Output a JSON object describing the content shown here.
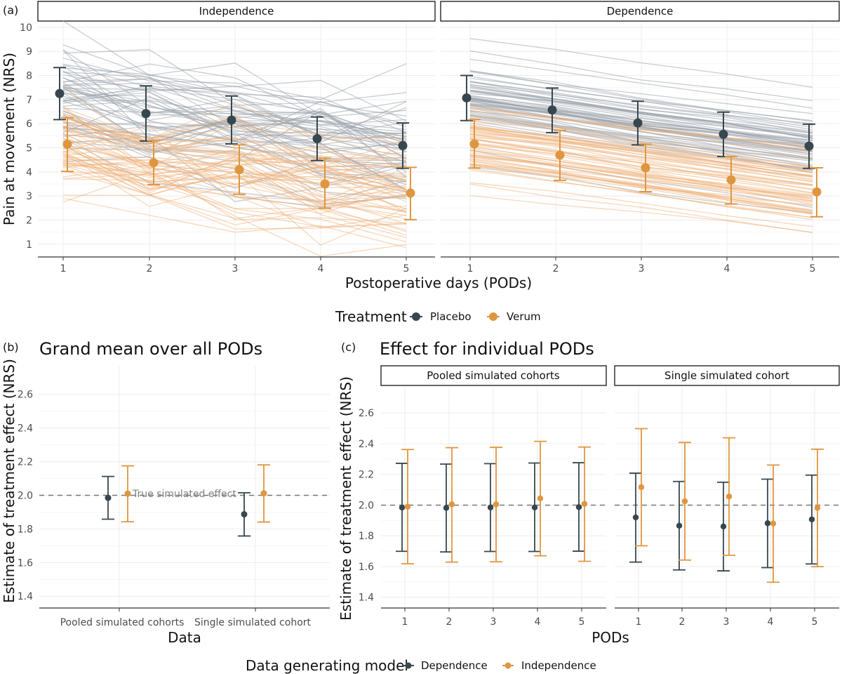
{
  "chart_data": [
    {
      "id": "a",
      "tag": "(a)",
      "type": "line",
      "xlabel": "Postoperative days (PODs)",
      "ylabel": "Pain at movement (NRS)",
      "x": [
        1,
        2,
        3,
        4,
        5
      ],
      "ylim": [
        0.5,
        10.2
      ],
      "yticks": [
        1,
        2,
        3,
        4,
        5,
        6,
        7,
        8,
        9,
        10
      ],
      "grid": true,
      "legend": {
        "title": "Treatment",
        "position": "bottom",
        "entries": [
          {
            "label": "Placebo",
            "color": "#37474f"
          },
          {
            "label": "Verum",
            "color": "#e0963f"
          }
        ]
      },
      "facets": [
        {
          "label": "Independence",
          "individual_lines": "many simulated subject trajectories with independent day-to-day noise",
          "series": [
            {
              "name": "Placebo",
              "color": "#37474f",
              "mean": [
                7.25,
                6.42,
                6.15,
                5.38,
                5.09
              ],
              "lower": [
                6.17,
                5.28,
                5.16,
                4.47,
                4.15
              ],
              "upper": [
                8.33,
                7.57,
                7.15,
                6.28,
                6.03
              ]
            },
            {
              "name": "Verum",
              "color": "#e0963f",
              "mean": [
                5.15,
                4.38,
                4.09,
                3.5,
                3.12
              ],
              "lower": [
                4.02,
                3.47,
                3.07,
                2.49,
                2.02
              ],
              "upper": [
                6.25,
                5.3,
                5.12,
                4.57,
                4.19
              ]
            }
          ]
        },
        {
          "label": "Dependence",
          "individual_lines": "many simulated subject trajectories declining almost linearly",
          "series": [
            {
              "name": "Placebo",
              "color": "#37474f",
              "mean": [
                7.07,
                6.57,
                6.03,
                5.56,
                5.07
              ],
              "lower": [
                6.13,
                5.63,
                5.12,
                4.64,
                4.15
              ],
              "upper": [
                8.0,
                7.48,
                6.93,
                6.48,
                5.98
              ]
            },
            {
              "name": "Verum",
              "color": "#e0963f",
              "mean": [
                5.16,
                4.7,
                4.17,
                3.67,
                3.17
              ],
              "lower": [
                4.16,
                3.65,
                3.18,
                2.67,
                2.14
              ],
              "upper": [
                6.17,
                5.72,
                5.15,
                4.64,
                4.17
              ]
            }
          ]
        }
      ]
    },
    {
      "id": "b",
      "tag": "(b)",
      "type": "scatter",
      "title": "Grand mean over all PODs",
      "xlabel": "Data",
      "ylabel": "Estimate of treatment effect (NRS)",
      "categories": [
        "Pooled simulated cohorts",
        "Single simulated cohort"
      ],
      "ylim": [
        1.33,
        2.77
      ],
      "yticks": [
        1.4,
        1.6,
        1.8,
        2.0,
        2.2,
        2.4,
        2.6
      ],
      "reference_line": {
        "y": 2.0,
        "label": "True simulated effect"
      },
      "series": [
        {
          "name": "Dependence",
          "color": "#37474f",
          "values": [
            1.985,
            1.887
          ],
          "lower": [
            1.858,
            1.758
          ],
          "upper": [
            2.112,
            2.015
          ]
        },
        {
          "name": "Independence",
          "color": "#e0963f",
          "values": [
            2.01,
            2.012
          ],
          "lower": [
            1.843,
            1.841
          ],
          "upper": [
            2.175,
            2.181
          ]
        }
      ]
    },
    {
      "id": "c",
      "tag": "(c)",
      "type": "scatter",
      "title": "Effect for individual PODs",
      "xlabel": "PODs",
      "ylabel": "Estimate of treatment effect (NRS)",
      "x": [
        1,
        2,
        3,
        4,
        5
      ],
      "ylim": [
        1.33,
        2.77
      ],
      "yticks": [
        1.4,
        1.6,
        1.8,
        2.0,
        2.2,
        2.4,
        2.6
      ],
      "reference_line": {
        "y": 2.0
      },
      "facets": [
        {
          "label": "Pooled simulated cohorts",
          "series": [
            {
              "name": "Dependence",
              "color": "#37474f",
              "values": [
                1.984,
                1.982,
                1.985,
                1.985,
                1.987
              ],
              "lower": [
                1.699,
                1.695,
                1.698,
                1.698,
                1.7
              ],
              "upper": [
                2.272,
                2.267,
                2.27,
                2.274,
                2.276
              ]
            },
            {
              "name": "Independence",
              "color": "#e0963f",
              "values": [
                1.99,
                2.005,
                2.005,
                2.044,
                2.008
              ],
              "lower": [
                1.618,
                1.629,
                1.631,
                1.67,
                1.634
              ],
              "upper": [
                2.362,
                2.374,
                2.376,
                2.415,
                2.378
              ]
            }
          ]
        },
        {
          "label": "Single simulated cohort",
          "series": [
            {
              "name": "Dependence",
              "color": "#37474f",
              "values": [
                1.92,
                1.866,
                1.861,
                1.882,
                1.907
              ],
              "lower": [
                1.629,
                1.578,
                1.572,
                1.593,
                1.617
              ],
              "upper": [
                2.208,
                2.154,
                2.149,
                2.169,
                2.195
              ]
            },
            {
              "name": "Independence",
              "color": "#e0963f",
              "values": [
                2.117,
                2.025,
                2.056,
                1.88,
                1.982
              ],
              "lower": [
                1.735,
                1.642,
                1.673,
                1.498,
                1.599
              ],
              "upper": [
                2.498,
                2.408,
                2.438,
                2.261,
                2.364
              ]
            }
          ]
        }
      ]
    }
  ],
  "bottom_legend": {
    "title": "Data generating model",
    "entries": [
      {
        "label": "Dependence",
        "color": "#37474f"
      },
      {
        "label": "Independence",
        "color": "#e0963f"
      }
    ]
  }
}
